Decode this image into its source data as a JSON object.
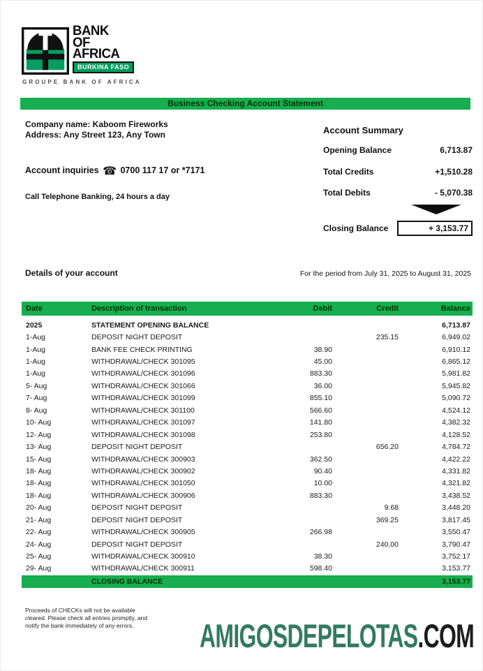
{
  "logo": {
    "bank_lines": [
      "BANK",
      "OF",
      "AFRICA"
    ],
    "country_badge": "BURKINA FASO",
    "groupe_line": "GROUPE BANK OF AFRICA"
  },
  "title_bar": "Business Checking Account Statement",
  "company": {
    "name_line": "Company name: Kaboom Fireworks",
    "address_line": "Address: Any Street 123, Any Town"
  },
  "contact": {
    "inquiries_prefix": "Account inquiries",
    "phone_icon": "☎",
    "inquiries_number": "0700 117 17 or *7171",
    "telephone_banking": "Call Telephone Banking, 24 hours a day"
  },
  "summary": {
    "title": "Account Summary",
    "opening_label": "Opening Balance",
    "opening_value": "6,713.87",
    "credits_label": "Total Credits",
    "credits_value": "+1,510.28",
    "debits_label": "Total Debits",
    "debits_value": "- 5,070.38",
    "closing_label": "Closing Balance",
    "closing_value": "+ 3,153.77"
  },
  "details": {
    "heading": "Details of your account",
    "period": "For the period from July 31, 2025 to August 31, 2025"
  },
  "table": {
    "headers": [
      "Date",
      "Description of transaction",
      "Debit",
      "Credit",
      "Balance"
    ],
    "rows": [
      {
        "date": "2025",
        "desc": "STATEMENT OPENING BALANCE",
        "debit": "",
        "credit": "",
        "balance": "6,713.87",
        "bold": true
      },
      {
        "date": "1-Aug",
        "desc": "DEPOSIT NIGHT DEPOSIT",
        "debit": "",
        "credit": "235.15",
        "balance": "6,949.02"
      },
      {
        "date": "1-Aug",
        "desc": "BANK FEE CHECK PRINTING",
        "debit": "38.90",
        "credit": "",
        "balance": "6,910.12"
      },
      {
        "date": "1-Aug",
        "desc": "WITHDRAWAL/CHECK 301095",
        "debit": "45.00",
        "credit": "",
        "balance": "6,865.12"
      },
      {
        "date": "1-Aug",
        "desc": "WITHDRAWAL/CHECK 301096",
        "debit": "883.30",
        "credit": "",
        "balance": "5,981.82"
      },
      {
        "date": "5- Aug",
        "desc": "WITHDRAWAL/CHECK 301066",
        "debit": "36.00",
        "credit": "",
        "balance": "5,945.82"
      },
      {
        "date": "7- Aug",
        "desc": "WITHDRAWAL/CHECK 301099",
        "debit": "855.10",
        "credit": "",
        "balance": "5,090.72"
      },
      {
        "date": "8- Aug",
        "desc": "WITHDRAWAL/CHECK 301100",
        "debit": "566.60",
        "credit": "",
        "balance": "4,524.12"
      },
      {
        "date": "10- Aug",
        "desc": "WITHDRAWAL/CHECK 301097",
        "debit": "141.80",
        "credit": "",
        "balance": "4,382.32"
      },
      {
        "date": "12- Aug",
        "desc": "WITHDRAWAL/CHECK 301098",
        "debit": "253.80",
        "credit": "",
        "balance": "4,128.52"
      },
      {
        "date": "13- Aug",
        "desc": "DEPOSIT NIGHT DEPOSIT",
        "debit": "",
        "credit": "656.20",
        "balance": "4,784.72"
      },
      {
        "date": "15- Aug",
        "desc": "WITHDRAWAL/CHECK 300903",
        "debit": "362.50",
        "credit": "",
        "balance": "4,422.22"
      },
      {
        "date": "18- Aug",
        "desc": "WITHDRAWAL/CHECK 300902",
        "debit": "90.40",
        "credit": "",
        "balance": "4,331.82"
      },
      {
        "date": "18- Aug",
        "desc": "WITHDRAWAL/CHECK 301050",
        "debit": "10.00",
        "credit": "",
        "balance": "4,321.82"
      },
      {
        "date": "18- Aug",
        "desc": "WITHDRAWAL/CHECK 300906",
        "debit": "883.30",
        "credit": "",
        "balance": "3,438.52"
      },
      {
        "date": "20- Aug",
        "desc": "DEPOSIT NIGHT DEPOSIT",
        "debit": "",
        "credit": "9.68",
        "balance": "3,448.20"
      },
      {
        "date": "21- Aug",
        "desc": "DEPOSIT NIGHT DEPOSIT",
        "debit": "",
        "credit": "369.25",
        "balance": "3,817.45"
      },
      {
        "date": "22- Aug",
        "desc": "WITHDRAWAL/CHECK 300905",
        "debit": "266.98",
        "credit": "",
        "balance": "3,550.47"
      },
      {
        "date": "24- Aug",
        "desc": "DEPOSIT NIGHT DEPOSIT",
        "debit": "",
        "credit": "240.00",
        "balance": "3,790.47"
      },
      {
        "date": "25- Aug",
        "desc": "WITHDRAWAL/CHECK 300910",
        "debit": "38.30",
        "credit": "",
        "balance": "3,752.17"
      },
      {
        "date": "29- Aug",
        "desc": "WITHDRAWAL/CHECK 300911",
        "debit": "598.40",
        "credit": "",
        "balance": "3,153.77"
      }
    ],
    "closing_row": {
      "label": "CLOSING BALANCE",
      "balance": "3,153.77"
    }
  },
  "footer": {
    "note_line1": "Proceeds of CHECKs will not be available",
    "note_line2": "cleared. Please check all entries promptly, and",
    "note_line3": "notify the bank immediately of any errors.",
    "brand_green": "AMIGOSDEPELOTAS",
    "brand_black": ".COM"
  },
  "colors": {
    "bar_green": "#16ae4e",
    "logo_green": "#019e60",
    "brand_teal": "#337a63"
  }
}
